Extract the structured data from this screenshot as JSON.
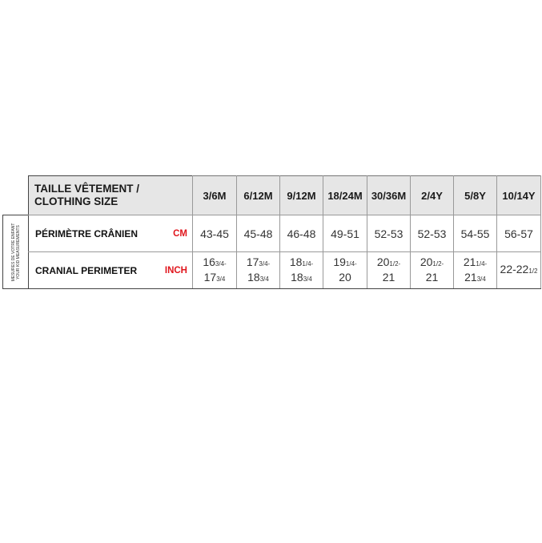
{
  "side_label": [
    "MESURES DE VOTRE ENFANT",
    "YOUR KID MEASUREMENTS"
  ],
  "header": {
    "title_line1": "TAILLE VÊTEMENT /",
    "title_line2": "CLOTHING SIZE",
    "sizes": [
      "3/6M",
      "6/12M",
      "9/12M",
      "18/24M",
      "30/36M",
      "2/4Y",
      "5/8Y",
      "10/14Y"
    ]
  },
  "rows": [
    {
      "label": "PÉRIMÈTRE CRÂNIEN",
      "unit": "CM",
      "values": [
        "43-45",
        "45-48",
        "46-48",
        "49-51",
        "52-53",
        "52-53",
        "54-55",
        "56-57"
      ]
    },
    {
      "label": "CRANIAL PERIMETER",
      "unit": "INCH",
      "values": [
        [
          [
            "16",
            "3/4-"
          ],
          [
            "17",
            "3/4"
          ]
        ],
        [
          [
            "17",
            "3/4-"
          ],
          [
            "18",
            "3/4"
          ]
        ],
        [
          [
            "18",
            "1/4-"
          ],
          [
            "18",
            "3/4"
          ]
        ],
        [
          [
            "19",
            "1/4-"
          ],
          [
            "20",
            ""
          ]
        ],
        [
          [
            "20",
            "1/2-"
          ],
          [
            "21",
            ""
          ]
        ],
        [
          [
            "20",
            "1/2-"
          ],
          [
            "21",
            ""
          ]
        ],
        [
          [
            "21",
            "1/4-"
          ],
          [
            "21",
            "3/4"
          ]
        ],
        [
          [
            "22-22",
            "1/2"
          ]
        ]
      ]
    }
  ],
  "colors": {
    "header_bg": "#e6e6e6",
    "unit": "#e0151c"
  }
}
